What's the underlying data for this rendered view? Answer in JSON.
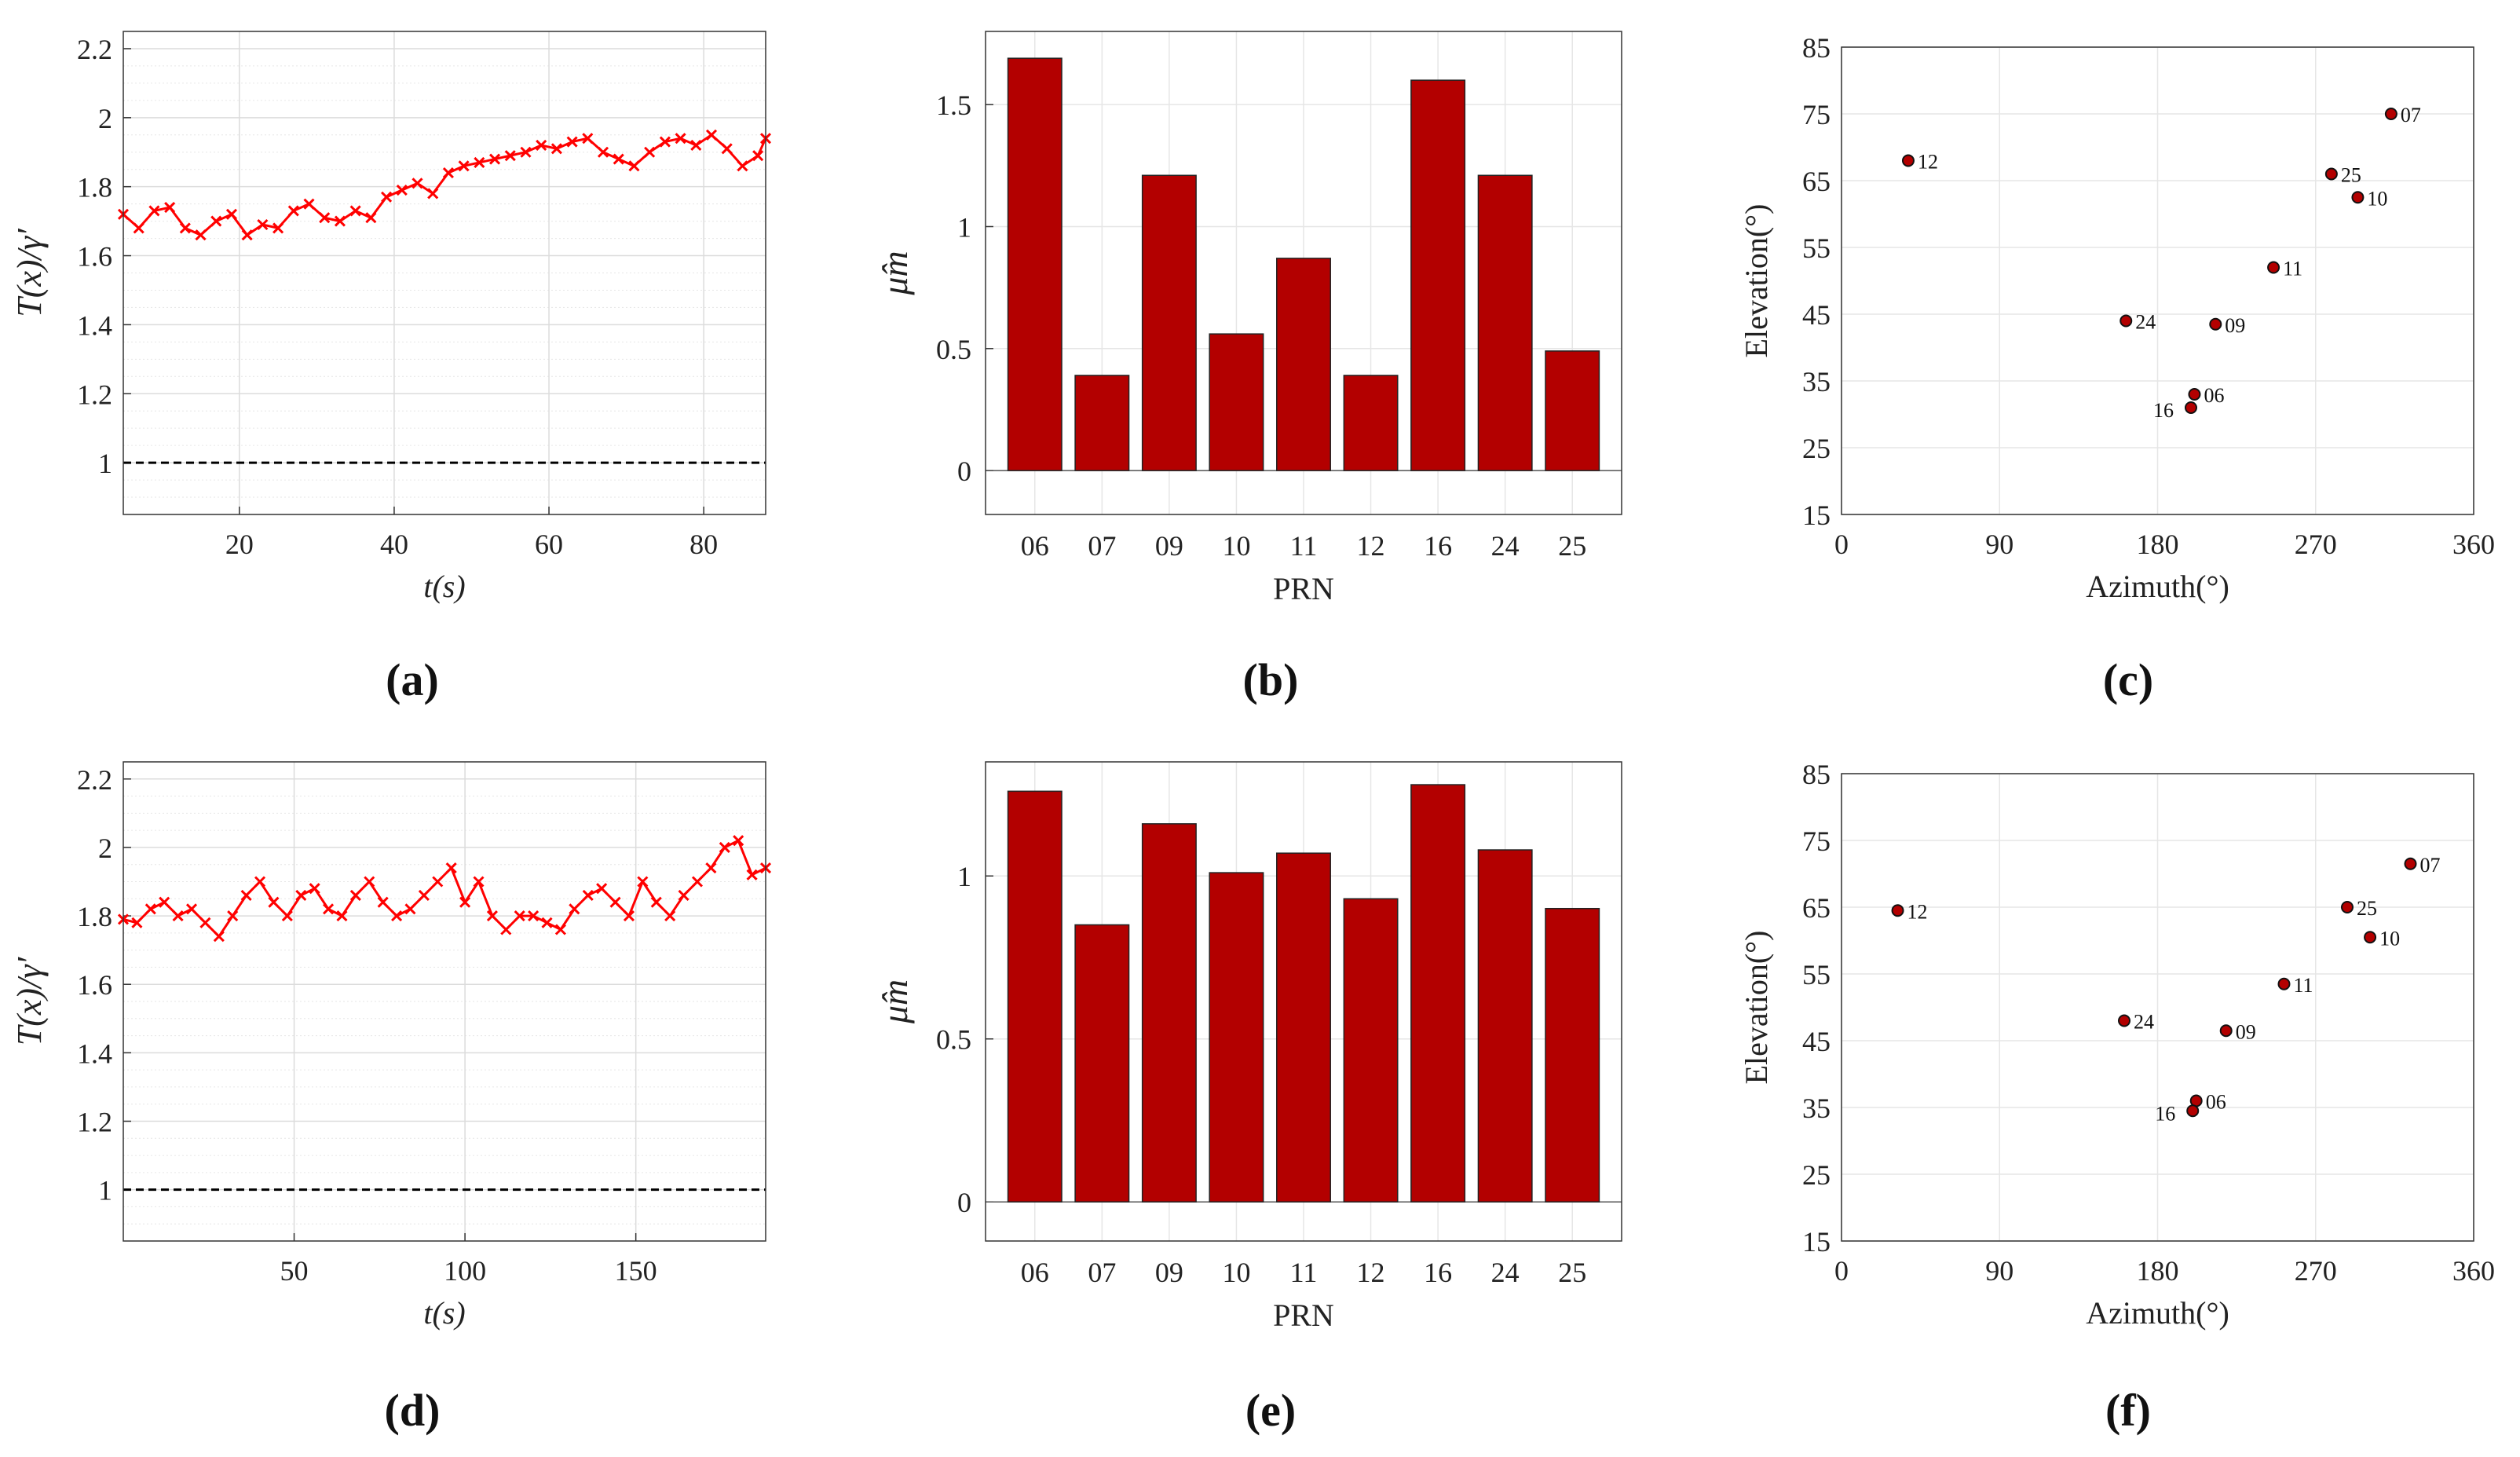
{
  "panels": [
    {
      "label": "(a)"
    },
    {
      "label": "(b)"
    },
    {
      "label": "(c)"
    },
    {
      "label": "(d)"
    },
    {
      "label": "(e)"
    },
    {
      "label": "(f)"
    }
  ],
  "colors": {
    "series": "#ff0000",
    "bar": "#b30000",
    "marker": "#b30000",
    "grid": "#e6e6e6",
    "axis": "#333333"
  },
  "chart_data": [
    {
      "type": "line",
      "xlabel": "t(s)",
      "ylabel": "T(x)/γ′",
      "xlim": [
        5,
        88
      ],
      "ylim": [
        0.85,
        2.25
      ],
      "xticks": [
        20,
        40,
        60,
        80
      ],
      "yticks": [
        1,
        1.2,
        1.4,
        1.6,
        1.8,
        2,
        2.2
      ],
      "grid": true,
      "marker": "x",
      "reference_line": {
        "y": 1,
        "style": "dashed",
        "color": "#000000"
      },
      "x": [
        5,
        7,
        9,
        11,
        13,
        15,
        17,
        19,
        21,
        23,
        25,
        27,
        29,
        31,
        33,
        35,
        37,
        39,
        41,
        43,
        45,
        47,
        49,
        51,
        53,
        55,
        57,
        59,
        61,
        63,
        65,
        67,
        69,
        71,
        73,
        75,
        77,
        79,
        81,
        83,
        85,
        87,
        88
      ],
      "y": [
        1.72,
        1.68,
        1.73,
        1.74,
        1.68,
        1.66,
        1.7,
        1.72,
        1.66,
        1.69,
        1.68,
        1.73,
        1.75,
        1.71,
        1.7,
        1.73,
        1.71,
        1.77,
        1.79,
        1.81,
        1.78,
        1.84,
        1.86,
        1.87,
        1.88,
        1.89,
        1.9,
        1.92,
        1.91,
        1.93,
        1.94,
        1.9,
        1.88,
        1.86,
        1.9,
        1.93,
        1.94,
        1.92,
        1.95,
        1.91,
        1.86,
        1.89,
        1.94
      ]
    },
    {
      "type": "bar",
      "xlabel": "PRN",
      "ylabel": "μ̂m",
      "categories": [
        "06",
        "07",
        "09",
        "10",
        "11",
        "12",
        "16",
        "24",
        "25"
      ],
      "values": [
        1.69,
        0.39,
        1.21,
        0.56,
        0.87,
        0.39,
        1.6,
        1.21,
        0.49
      ],
      "ylim": [
        -0.18,
        1.8
      ],
      "yticks": [
        0,
        0.5,
        1,
        1.5
      ],
      "ytick_labels": [
        "0",
        "0.5",
        "1",
        "1.5"
      ],
      "grid": true
    },
    {
      "type": "scatter",
      "xlabel": "Azimuth(°)",
      "ylabel": "Elevation(°)",
      "xlim": [
        0,
        360
      ],
      "ylim": [
        15,
        85
      ],
      "xticks": [
        0,
        90,
        180,
        270,
        360
      ],
      "yticks": [
        15,
        25,
        35,
        45,
        55,
        65,
        75,
        85
      ],
      "grid": true,
      "points": [
        {
          "name": "12",
          "x": 38,
          "y": 68
        },
        {
          "name": "07",
          "x": 313,
          "y": 75
        },
        {
          "name": "25",
          "x": 279,
          "y": 66
        },
        {
          "name": "10",
          "x": 294,
          "y": 62.5
        },
        {
          "name": "11",
          "x": 246,
          "y": 52
        },
        {
          "name": "24",
          "x": 162,
          "y": 44
        },
        {
          "name": "09",
          "x": 213,
          "y": 43.5
        },
        {
          "name": "06",
          "x": 201,
          "y": 33
        },
        {
          "name": "16",
          "x": 199,
          "y": 31
        }
      ]
    },
    {
      "type": "line",
      "xlabel": "t(s)",
      "ylabel": "T(x)/γ′",
      "xlim": [
        0,
        188
      ],
      "ylim": [
        0.85,
        2.25
      ],
      "xticks": [
        50,
        100,
        150
      ],
      "yticks": [
        1,
        1.2,
        1.4,
        1.6,
        1.8,
        2,
        2.2
      ],
      "grid": true,
      "marker": "x",
      "reference_line": {
        "y": 1,
        "style": "dashed",
        "color": "#000000"
      },
      "x": [
        0,
        4,
        8,
        12,
        16,
        20,
        24,
        28,
        32,
        36,
        40,
        44,
        48,
        52,
        56,
        60,
        64,
        68,
        72,
        76,
        80,
        84,
        88,
        92,
        96,
        100,
        104,
        108,
        112,
        116,
        120,
        124,
        128,
        132,
        136,
        140,
        144,
        148,
        152,
        156,
        160,
        164,
        168,
        172,
        176,
        180,
        184,
        188
      ],
      "y": [
        1.79,
        1.78,
        1.82,
        1.84,
        1.8,
        1.82,
        1.78,
        1.74,
        1.8,
        1.86,
        1.9,
        1.84,
        1.8,
        1.86,
        1.88,
        1.82,
        1.8,
        1.86,
        1.9,
        1.84,
        1.8,
        1.82,
        1.86,
        1.9,
        1.94,
        1.84,
        1.9,
        1.8,
        1.76,
        1.8,
        1.8,
        1.78,
        1.76,
        1.82,
        1.86,
        1.88,
        1.84,
        1.8,
        1.9,
        1.84,
        1.8,
        1.86,
        1.9,
        1.94,
        2.0,
        2.02,
        1.92,
        1.94
      ]
    },
    {
      "type": "bar",
      "xlabel": "PRN",
      "ylabel": "μ̂m",
      "categories": [
        "06",
        "07",
        "09",
        "10",
        "11",
        "12",
        "16",
        "24",
        "25"
      ],
      "values": [
        1.26,
        0.85,
        1.16,
        1.01,
        1.07,
        0.93,
        1.28,
        1.08,
        0.9
      ],
      "ylim": [
        -0.12,
        1.35
      ],
      "yticks": [
        0,
        0.5,
        1
      ],
      "ytick_labels": [
        "0",
        "0.5",
        "1"
      ],
      "grid": true
    },
    {
      "type": "scatter",
      "xlabel": "Azimuth(°)",
      "ylabel": "Elevation(°)",
      "xlim": [
        0,
        360
      ],
      "ylim": [
        15,
        85
      ],
      "xticks": [
        0,
        90,
        180,
        270,
        360
      ],
      "yticks": [
        15,
        25,
        35,
        45,
        55,
        65,
        75,
        85
      ],
      "grid": true,
      "points": [
        {
          "name": "12",
          "x": 32,
          "y": 64.5
        },
        {
          "name": "07",
          "x": 324,
          "y": 71.5
        },
        {
          "name": "25",
          "x": 288,
          "y": 65
        },
        {
          "name": "10",
          "x": 301,
          "y": 60.5
        },
        {
          "name": "11",
          "x": 252,
          "y": 53.5
        },
        {
          "name": "24",
          "x": 161,
          "y": 48
        },
        {
          "name": "09",
          "x": 219,
          "y": 46.5
        },
        {
          "name": "06",
          "x": 202,
          "y": 36
        },
        {
          "name": "16",
          "x": 200,
          "y": 34.5
        }
      ]
    }
  ]
}
